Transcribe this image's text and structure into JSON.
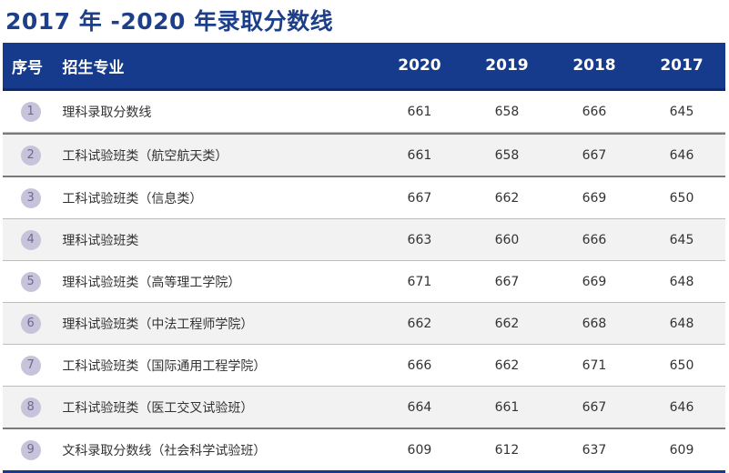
{
  "title": "2017 年 -2020 年录取分数线",
  "header": {
    "idx": "序号",
    "major": "招生专业",
    "years": [
      "2020",
      "2019",
      "2018",
      "2017"
    ]
  },
  "rows": [
    {
      "idx": "1",
      "major": "理科录取分数线",
      "scores": [
        "661",
        "658",
        "666",
        "645"
      ]
    },
    {
      "idx": "2",
      "major": "工科试验班类（航空航天类）",
      "scores": [
        "661",
        "658",
        "667",
        "646"
      ]
    },
    {
      "idx": "3",
      "major": "工科试验班类（信息类）",
      "scores": [
        "667",
        "662",
        "669",
        "650"
      ]
    },
    {
      "idx": "4",
      "major": "理科试验班类",
      "scores": [
        "663",
        "660",
        "666",
        "645"
      ]
    },
    {
      "idx": "5",
      "major": "理科试验班类（高等理工学院）",
      "scores": [
        "671",
        "667",
        "669",
        "648"
      ]
    },
    {
      "idx": "6",
      "major": "理科试验班类（中法工程师学院）",
      "scores": [
        "662",
        "662",
        "668",
        "648"
      ]
    },
    {
      "idx": "7",
      "major": "工科试验班类（国际通用工程学院）",
      "scores": [
        "666",
        "662",
        "671",
        "650"
      ]
    },
    {
      "idx": "8",
      "major": "工科试验班类（医工交叉试验班）",
      "scores": [
        "664",
        "661",
        "667",
        "646"
      ]
    },
    {
      "idx": "9",
      "major": "文科录取分数线（社会科学试验班）",
      "scores": [
        "609",
        "612",
        "637",
        "609"
      ]
    }
  ]
}
